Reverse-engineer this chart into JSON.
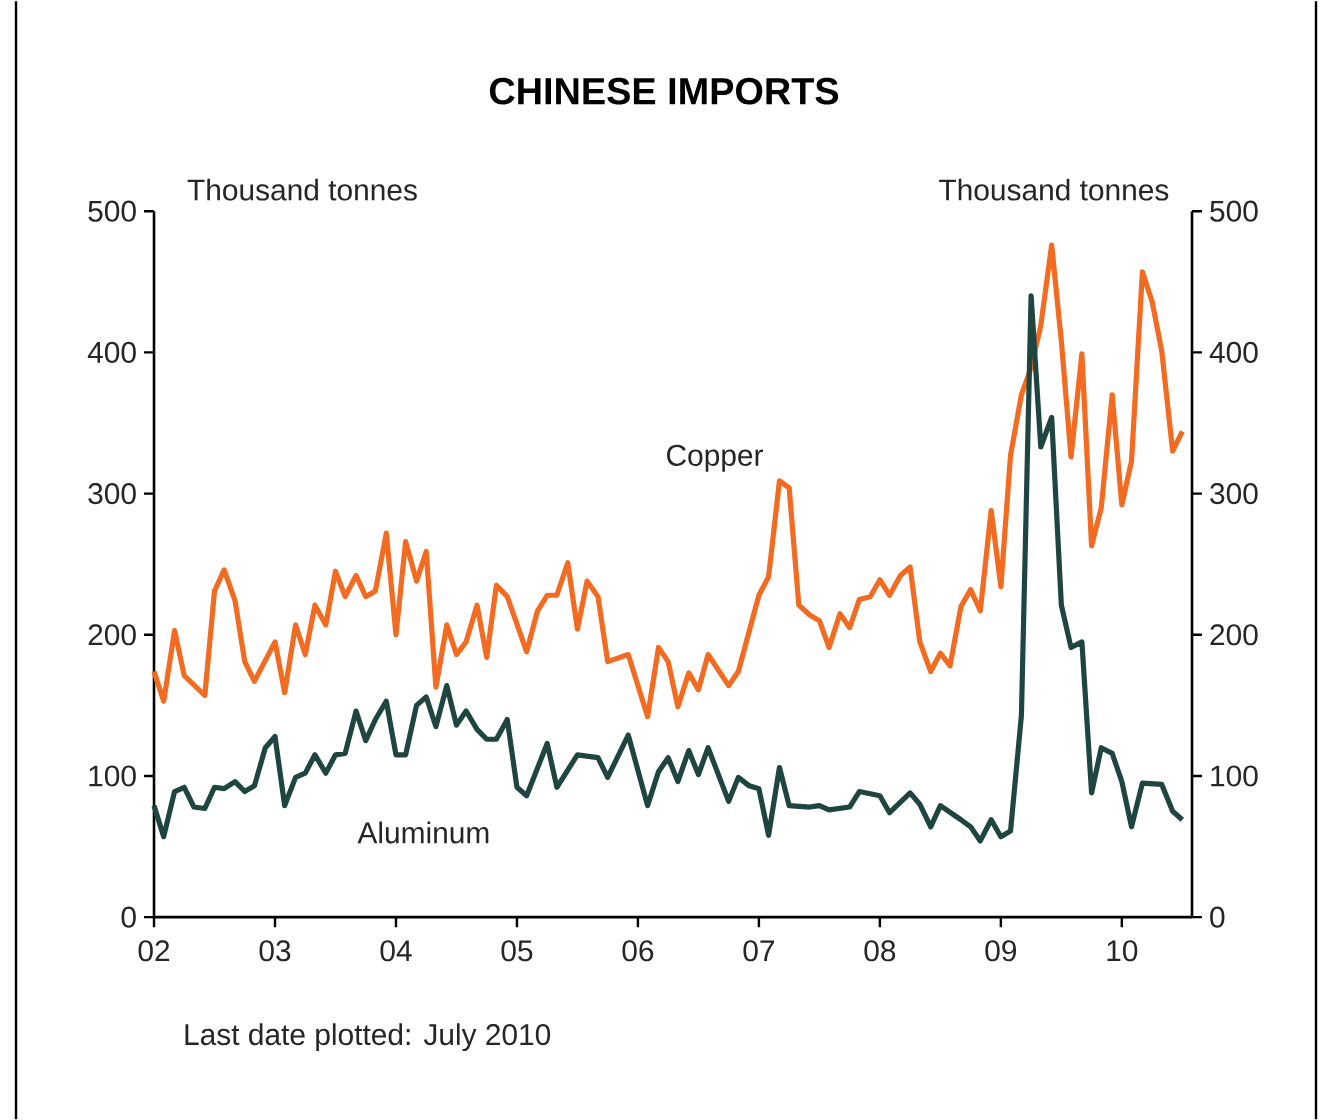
{
  "chart_data": {
    "type": "line",
    "title": "CHINESE IMPORTS",
    "ylabel": "Thousand tonnes",
    "y2label": "Thousand tonnes",
    "annotations": [
      "Last date plotted: July 2010"
    ],
    "xlim": [
      "2002-01",
      "2010-08"
    ],
    "xticks": [
      {
        "value": "2002",
        "label": "02"
      },
      {
        "value": "2003",
        "label": "03"
      },
      {
        "value": "2004",
        "label": "04"
      },
      {
        "value": "2005",
        "label": "05"
      },
      {
        "value": "2006",
        "label": "06"
      },
      {
        "value": "2007",
        "label": "07"
      },
      {
        "value": "2008",
        "label": "08"
      },
      {
        "value": "2009",
        "label": "09"
      },
      {
        "value": "2010",
        "label": "10"
      }
    ],
    "ylim": [
      0,
      500
    ],
    "yticks": [
      0,
      100,
      200,
      300,
      400,
      500
    ],
    "y2lim": [
      0,
      500
    ],
    "y2ticks": [
      0,
      100,
      200,
      300,
      400,
      500
    ],
    "series": [
      {
        "name": "Copper",
        "color": "#f26b21",
        "x": [
          "2002-01",
          "2002-02",
          "2002-03",
          "2002-04",
          "2002-06",
          "2002-07",
          "2002-08",
          "2002-09",
          "2002-10",
          "2002-11",
          "2003-01",
          "2003-02",
          "2003-03",
          "2003-04",
          "2003-05",
          "2003-06",
          "2003-07",
          "2003-08",
          "2003-09",
          "2003-10",
          "2003-11",
          "2003-12",
          "2004-01",
          "2004-02",
          "2004-03",
          "2004-04",
          "2004-05",
          "2004-06",
          "2004-07",
          "2004-08",
          "2004-09",
          "2004-10",
          "2004-11",
          "2004-12",
          "2005-02",
          "2005-03",
          "2005-04",
          "2005-05",
          "2005-06",
          "2005-07",
          "2005-08",
          "2005-09",
          "2005-10",
          "2005-12",
          "2006-02",
          "2006-03",
          "2006-04",
          "2006-05",
          "2006-06",
          "2006-07",
          "2006-08",
          "2006-10",
          "2006-11",
          "2007-01",
          "2007-02",
          "2007-03",
          "2007-04",
          "2007-05",
          "2007-06",
          "2007-07",
          "2007-08",
          "2007-09",
          "2007-10",
          "2007-11",
          "2007-12",
          "2008-01",
          "2008-02",
          "2008-03",
          "2008-04",
          "2008-05",
          "2008-06",
          "2008-07",
          "2008-08",
          "2008-09",
          "2008-10",
          "2008-11",
          "2008-12",
          "2009-01",
          "2009-02",
          "2009-03",
          "2009-04",
          "2009-05",
          "2009-06",
          "2009-07",
          "2009-08",
          "2009-09",
          "2009-10",
          "2009-11",
          "2009-12",
          "2010-01",
          "2010-02",
          "2010-03",
          "2010-04",
          "2010-05",
          "2010-06",
          "2010-07"
        ],
        "values": [
          174,
          153,
          203,
          171,
          157,
          231,
          246,
          224,
          181,
          167,
          195,
          159,
          207,
          186,
          221,
          207,
          245,
          227,
          242,
          227,
          231,
          272,
          200,
          266,
          238,
          259,
          163,
          207,
          186,
          195,
          221,
          184,
          235,
          227,
          188,
          217,
          228,
          228,
          251,
          204,
          238,
          227,
          181,
          186,
          142,
          191,
          181,
          149,
          173,
          161,
          186,
          164,
          174,
          228,
          241,
          309,
          304,
          221,
          214,
          210,
          191,
          215,
          205,
          225,
          227,
          239,
          228,
          242,
          248,
          195,
          174,
          187,
          178,
          220,
          232,
          217,
          288,
          234,
          327,
          370,
          389,
          419,
          476,
          408,
          326,
          399,
          263,
          290,
          370,
          292,
          323,
          457,
          436,
          401,
          330,
          344
        ]
      },
      {
        "name": "Aluminum",
        "color": "#1f4540",
        "x": [
          "2002-01",
          "2002-02",
          "2002-03",
          "2002-04",
          "2002-05",
          "2002-06",
          "2002-07",
          "2002-08",
          "2002-09",
          "2002-10",
          "2002-11",
          "2002-12",
          "2003-01",
          "2003-02",
          "2003-03",
          "2003-04",
          "2003-05",
          "2003-06",
          "2003-07",
          "2003-08",
          "2003-09",
          "2003-10",
          "2003-11",
          "2003-12",
          "2004-01",
          "2004-02",
          "2004-03",
          "2004-04",
          "2004-05",
          "2004-06",
          "2004-07",
          "2004-08",
          "2004-09",
          "2004-10",
          "2004-11",
          "2004-12",
          "2005-01",
          "2005-02",
          "2005-04",
          "2005-05",
          "2005-07",
          "2005-09",
          "2005-10",
          "2005-12",
          "2006-02",
          "2006-03",
          "2006-04",
          "2006-05",
          "2006-06",
          "2006-07",
          "2006-08",
          "2006-10",
          "2006-11",
          "2006-12",
          "2007-01",
          "2007-02",
          "2007-03",
          "2007-04",
          "2007-06",
          "2007-07",
          "2007-08",
          "2007-10",
          "2007-11",
          "2008-01",
          "2008-02",
          "2008-04",
          "2008-05",
          "2008-06",
          "2008-07",
          "2008-09",
          "2008-10",
          "2008-11",
          "2008-12",
          "2009-01",
          "2009-02",
          "2009-03",
          "2009-04",
          "2009-05",
          "2009-06",
          "2009-07",
          "2009-08",
          "2009-09",
          "2009-10",
          "2009-11",
          "2009-12",
          "2010-01",
          "2010-02",
          "2010-03",
          "2010-05",
          "2010-06",
          "2010-07"
        ],
        "values": [
          79,
          57,
          89,
          92,
          78,
          77,
          92,
          91,
          96,
          89,
          93,
          120,
          128,
          79,
          99,
          102,
          115,
          102,
          115,
          116,
          146,
          125,
          140,
          153,
          115,
          115,
          150,
          156,
          135,
          164,
          136,
          146,
          133,
          126,
          126,
          140,
          92,
          86,
          123,
          92,
          115,
          113,
          99,
          129,
          79,
          103,
          113,
          96,
          118,
          101,
          120,
          82,
          99,
          93,
          91,
          58,
          106,
          79,
          78,
          79,
          76,
          78,
          89,
          86,
          74,
          88,
          80,
          64,
          79,
          69,
          64,
          54,
          69,
          57,
          61,
          143,
          440,
          333,
          354,
          221,
          191,
          195,
          88,
          120,
          116,
          96,
          64,
          95,
          94,
          75,
          69
        ]
      }
    ]
  }
}
